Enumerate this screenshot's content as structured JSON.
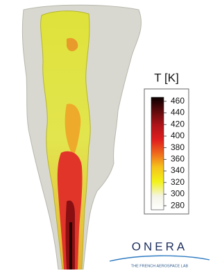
{
  "colorbar": {
    "title": "T [K]",
    "ticks": [
      460,
      440,
      420,
      400,
      380,
      360,
      340,
      320,
      300,
      280
    ],
    "lim": [
      273,
      467
    ]
  },
  "logo": {
    "name": "ONERA",
    "tagline": "THE FRENCH AEROSPACE LAB"
  }
}
